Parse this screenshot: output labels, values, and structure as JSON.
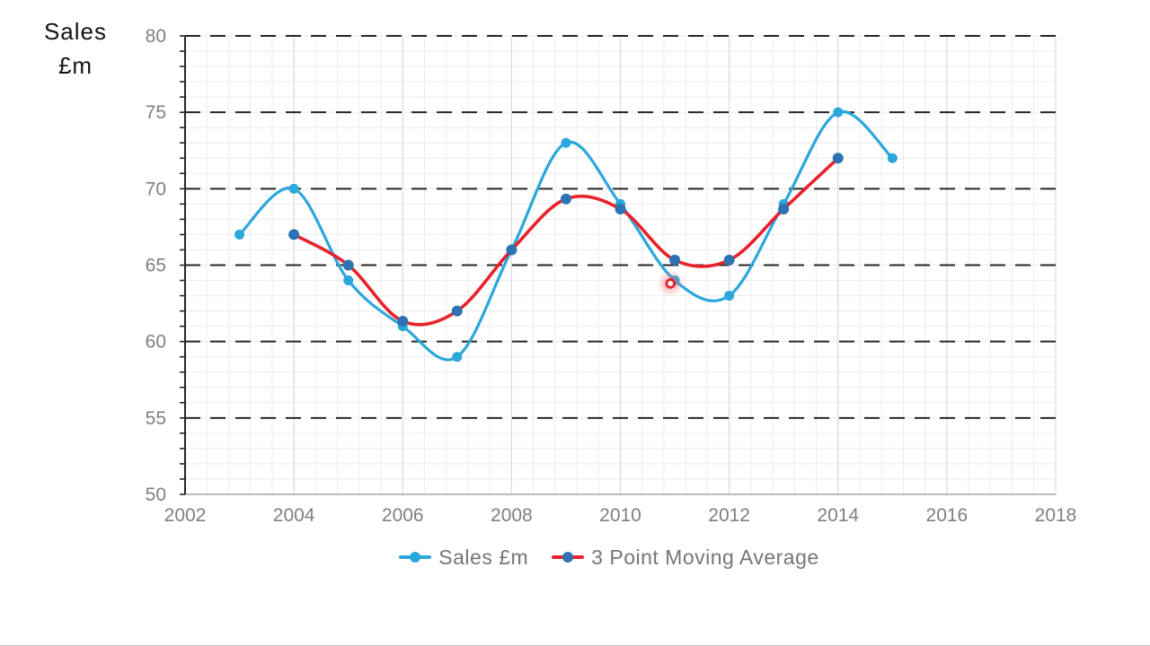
{
  "axis_title": {
    "line1": "Sales",
    "line2": "£m"
  },
  "legend": [
    {
      "label": "Sales £m",
      "line_color": "#2CA7DC",
      "marker_color": "#2CA7DC"
    },
    {
      "label": "3 Point Moving Average",
      "line_color": "#E8222B",
      "marker_color": "#2D72B2"
    }
  ],
  "colors": {
    "grid_minor": "#ececec",
    "grid_major_vertical": "#d5d5d5",
    "grid_major_horizontal": "#262626",
    "x_axis_line": "#a6a6a6",
    "y_axis_line": "#262626",
    "tick_label": "#7f7f7f",
    "cursor_ring": "#e4232b",
    "cursor_glow": "#f2666e"
  },
  "chart_data": {
    "type": "line",
    "title": "Sales £m",
    "xlabel": "",
    "ylabel": "Sales £m",
    "x_axis": {
      "min": 2002,
      "max": 2018,
      "major_unit": 2,
      "minor_unit": 0.4,
      "tick_labels": [
        "2002",
        "2004",
        "2006",
        "2008",
        "2010",
        "2012",
        "2014",
        "2016",
        "2018"
      ]
    },
    "y_axis": {
      "min": 50,
      "max": 80,
      "major_unit": 5,
      "minor_unit": 1,
      "tick_labels": [
        "50",
        "55",
        "60",
        "65",
        "70",
        "75",
        "80"
      ]
    },
    "grid": {
      "minor": true,
      "major_horizontal_dashed": true
    },
    "legend_position": "bottom",
    "series": [
      {
        "name": "Sales £m",
        "color": "#2CA7DC",
        "marker_color": "#2CA7DC",
        "smooth": true,
        "line_width": 3.2,
        "marker_radius": 5.5,
        "points": [
          [
            2003,
            67
          ],
          [
            2004,
            70
          ],
          [
            2005,
            64
          ],
          [
            2006,
            61
          ],
          [
            2007,
            59
          ],
          [
            2008,
            66
          ],
          [
            2009,
            73
          ],
          [
            2010,
            69
          ],
          [
            2011,
            64
          ],
          [
            2012,
            63
          ],
          [
            2013,
            69
          ],
          [
            2014,
            75
          ],
          [
            2015,
            72
          ]
        ]
      },
      {
        "name": "3 Point Moving Average",
        "color": "#E8222B",
        "marker_color": "#2D72B2",
        "smooth": true,
        "line_width": 3.6,
        "marker_radius": 6,
        "points": [
          [
            2004,
            67
          ],
          [
            2005,
            65
          ],
          [
            2006,
            61.33
          ],
          [
            2007,
            62
          ],
          [
            2008,
            66
          ],
          [
            2009,
            69.33
          ],
          [
            2010,
            68.67
          ],
          [
            2011,
            65.33
          ],
          [
            2012,
            65.33
          ],
          [
            2013,
            68.67
          ],
          [
            2014,
            72
          ]
        ]
      }
    ],
    "cursor_highlight": {
      "year": 2010.92,
      "value": 63.8
    }
  }
}
